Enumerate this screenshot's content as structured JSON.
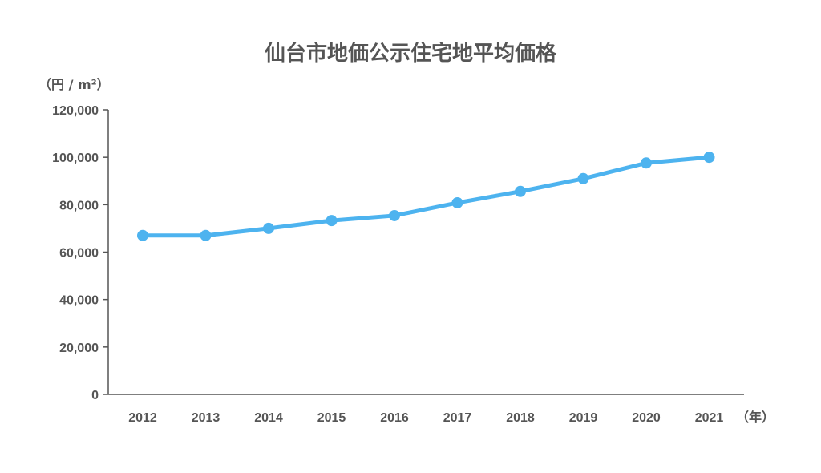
{
  "chart_data": {
    "type": "line",
    "title": "仙台市地価公示住宅地平均価格",
    "ylabel": "（円 / m²）",
    "xlabel": "（年）",
    "categories": [
      "2012",
      "2013",
      "2014",
      "2015",
      "2016",
      "2017",
      "2018",
      "2019",
      "2020",
      "2021"
    ],
    "series": [
      {
        "values": [
          67000,
          67000,
          70000,
          73300,
          75400,
          80800,
          85600,
          91000,
          97600,
          100000
        ]
      }
    ],
    "ylim": [
      0,
      120000
    ],
    "yticks": [
      "0",
      "20,000",
      "40,000",
      "60,000",
      "80,000",
      "100,000",
      "120,000"
    ],
    "ytick_values": [
      0,
      20000,
      40000,
      60000,
      80000,
      100000,
      120000
    ],
    "grid": false,
    "line_color": "#4db3ef",
    "text_color": "#555555"
  }
}
